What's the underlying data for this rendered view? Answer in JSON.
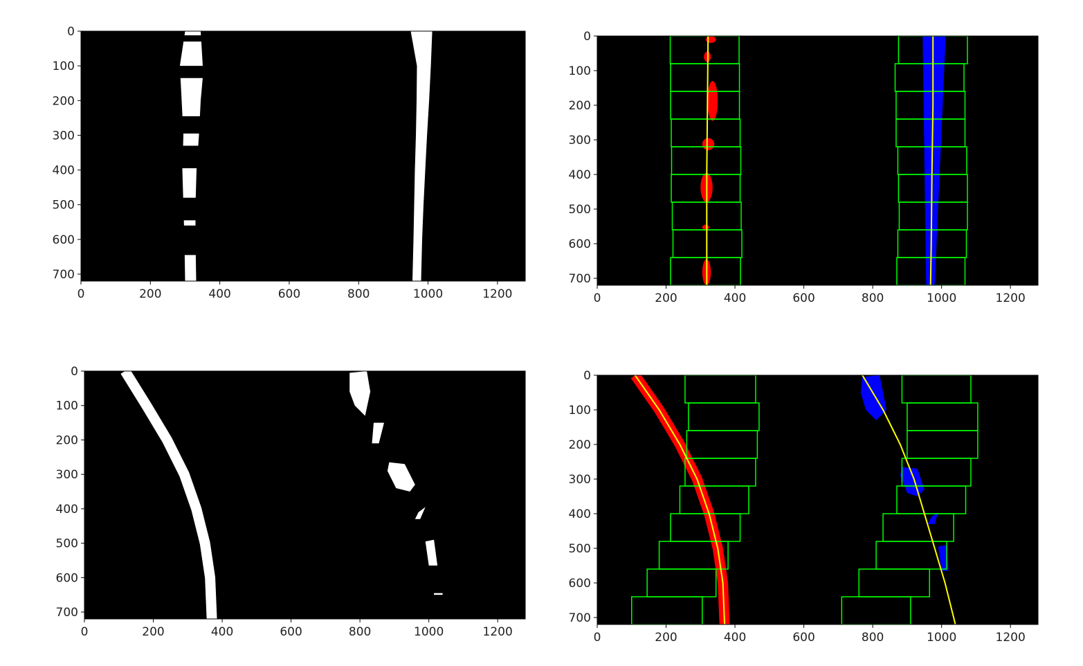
{
  "colors": {
    "background": "#000000",
    "lane_pixels_binary": "#ffffff",
    "left_lane_pixels": "#ff0000",
    "right_lane_pixels": "#0000ff",
    "search_windows": "#00ff00",
    "fit_curve": "#ffff00",
    "tick_text": "#222222",
    "frame": "#000000"
  },
  "chart_data": [
    {
      "type": "heatmap",
      "kind": "binary-lane-image",
      "xlim": [
        0,
        1280
      ],
      "ylim": [
        720,
        0
      ],
      "xticks": [
        "0",
        "200",
        "400",
        "600",
        "800",
        "1000",
        "1200"
      ],
      "yticks": [
        "0",
        "100",
        "200",
        "300",
        "400",
        "500",
        "600",
        "700"
      ],
      "lanes": [
        {
          "name": "",
          "polygon": [
            [
              305,
              0
            ],
            [
              345,
              0
            ],
            [
              352,
              120
            ],
            [
              345,
              200
            ],
            [
              340,
              300
            ],
            [
              333,
              400
            ],
            [
              330,
              500
            ],
            [
              330,
              600
            ],
            [
              332,
              720
            ],
            [
              300,
              720
            ],
            [
              298,
              600
            ],
            [
              295,
              500
            ],
            [
              292,
              400
            ],
            [
              295,
              300
            ],
            [
              290,
              200
            ],
            [
              285,
              100
            ],
            [
              300,
              0
            ]
          ],
          "segments": [
            [
              0,
              12
            ],
            [
              30,
              100
            ],
            [
              135,
              245
            ],
            [
              295,
              330
            ],
            [
              395,
              480
            ],
            [
              545,
              560
            ],
            [
              645,
              720
            ]
          ]
        },
        {
          "name": "",
          "polygon": [
            [
              945,
              0
            ],
            [
              1012,
              0
            ],
            [
              1008,
              100
            ],
            [
              1003,
              200
            ],
            [
              997,
              300
            ],
            [
              992,
              400
            ],
            [
              987,
              500
            ],
            [
              983,
              600
            ],
            [
              980,
              720
            ],
            [
              955,
              720
            ],
            [
              958,
              600
            ],
            [
              960,
              500
            ],
            [
              962,
              400
            ],
            [
              965,
              300
            ],
            [
              967,
              200
            ],
            [
              968,
              100
            ],
            [
              950,
              0
            ]
          ],
          "segments": [
            [
              0,
              720
            ]
          ]
        }
      ]
    },
    {
      "type": "heatmap",
      "kind": "sliding-window-fit",
      "xlim": [
        0,
        1280
      ],
      "ylim": [
        720,
        0
      ],
      "xticks": [
        "0",
        "200",
        "400",
        "600",
        "800",
        "1000",
        "1200"
      ],
      "yticks": [
        "0",
        "100",
        "200",
        "300",
        "400",
        "500",
        "600",
        "700"
      ],
      "window_height": 80,
      "left_windows": [
        [
          213,
          416
        ],
        [
          220,
          420
        ],
        [
          218,
          418
        ],
        [
          215,
          415
        ],
        [
          216,
          417
        ],
        [
          215,
          415
        ],
        [
          213,
          413
        ],
        [
          213,
          413
        ],
        [
          212,
          412
        ]
      ],
      "right_windows": [
        [
          870,
          1068
        ],
        [
          873,
          1072
        ],
        [
          877,
          1075
        ],
        [
          875,
          1075
        ],
        [
          873,
          1073
        ],
        [
          868,
          1068
        ],
        [
          868,
          1068
        ],
        [
          865,
          1065
        ],
        [
          875,
          1075
        ]
      ],
      "left_pixels": [
        {
          "xs": [
            315,
            345
          ],
          "ys": [
            0,
            20
          ]
        },
        {
          "xs": [
            310,
            330
          ],
          "ys": [
            45,
            75
          ]
        },
        {
          "xs": [
            320,
            350
          ],
          "ys": [
            130,
            245
          ]
        },
        {
          "xs": [
            305,
            340
          ],
          "ys": [
            295,
            330
          ]
        },
        {
          "xs": [
            300,
            335
          ],
          "ys": [
            395,
            480
          ]
        },
        {
          "xs": [
            305,
            325
          ],
          "ys": [
            545,
            560
          ]
        },
        {
          "xs": [
            305,
            330
          ],
          "ys": [
            645,
            720
          ]
        }
      ],
      "right_pixels": {
        "top": [
          945,
          1012
        ],
        "bottom": [
          955,
          980
        ]
      },
      "left_fit": [
        [
          322,
          0
        ],
        [
          320,
          200
        ],
        [
          318,
          400
        ],
        [
          318,
          600
        ],
        [
          318,
          720
        ]
      ],
      "right_fit": [
        [
          975,
          0
        ],
        [
          975,
          200
        ],
        [
          972,
          400
        ],
        [
          970,
          600
        ],
        [
          968,
          720
        ]
      ]
    },
    {
      "type": "heatmap",
      "kind": "binary-lane-image",
      "xlim": [
        0,
        1280
      ],
      "ylim": [
        720,
        0
      ],
      "xticks": [
        "0",
        "200",
        "400",
        "600",
        "800",
        "1000",
        "1200"
      ],
      "yticks": [
        "0",
        "100",
        "200",
        "300",
        "400",
        "500",
        "600",
        "700"
      ],
      "lanes": [
        {
          "name": "",
          "curve": [
            [
              118,
              0
            ],
            [
              180,
              100
            ],
            [
              240,
              200
            ],
            [
              290,
              300
            ],
            [
              325,
              400
            ],
            [
              350,
              500
            ],
            [
              365,
              600
            ],
            [
              370,
              720
            ]
          ],
          "width": 30
        }
      ],
      "blobs": [
        [
          [
            770,
            5
          ],
          [
            820,
            0
          ],
          [
            830,
            60
          ],
          [
            815,
            130
          ],
          [
            785,
            100
          ],
          [
            770,
            60
          ]
        ],
        [
          [
            840,
            150
          ],
          [
            870,
            150
          ],
          [
            855,
            210
          ],
          [
            835,
            210
          ]
        ],
        [
          [
            885,
            265
          ],
          [
            930,
            270
          ],
          [
            960,
            330
          ],
          [
            945,
            350
          ],
          [
            905,
            340
          ],
          [
            880,
            290
          ]
        ],
        [
          [
            970,
            410
          ],
          [
            990,
            395
          ],
          [
            975,
            430
          ],
          [
            960,
            430
          ]
        ],
        [
          [
            990,
            495
          ],
          [
            1015,
            490
          ],
          [
            1025,
            565
          ],
          [
            1000,
            565
          ]
        ],
        [
          [
            1015,
            645
          ],
          [
            1040,
            645
          ],
          [
            1040,
            650
          ],
          [
            1015,
            650
          ]
        ]
      ]
    },
    {
      "type": "heatmap",
      "kind": "sliding-window-fit",
      "xlim": [
        0,
        1280
      ],
      "ylim": [
        720,
        0
      ],
      "xticks": [
        "0",
        "200",
        "400",
        "600",
        "800",
        "1000",
        "1200"
      ],
      "yticks": [
        "0",
        "100",
        "200",
        "300",
        "400",
        "500",
        "600",
        "700"
      ],
      "window_height": 80,
      "left_windows": [
        [
          100,
          305
        ],
        [
          145,
          345
        ],
        [
          180,
          380
        ],
        [
          213,
          415
        ],
        [
          240,
          440
        ],
        [
          255,
          460
        ],
        [
          260,
          465
        ],
        [
          265,
          470
        ],
        [
          255,
          460
        ]
      ],
      "right_windows": [
        [
          710,
          910
        ],
        [
          760,
          965
        ],
        [
          810,
          1015
        ],
        [
          830,
          1035
        ],
        [
          870,
          1070
        ],
        [
          885,
          1085
        ],
        [
          900,
          1105
        ],
        [
          900,
          1105
        ],
        [
          885,
          1085
        ]
      ],
      "left_curve": {
        "points": [
          [
            110,
            0
          ],
          [
            180,
            100
          ],
          [
            240,
            200
          ],
          [
            290,
            300
          ],
          [
            325,
            400
          ],
          [
            350,
            500
          ],
          [
            365,
            600
          ],
          [
            370,
            720
          ]
        ],
        "width": 30
      },
      "right_blobs": [
        [
          [
            770,
            5
          ],
          [
            820,
            0
          ],
          [
            840,
            100
          ],
          [
            810,
            130
          ],
          [
            780,
            100
          ],
          [
            765,
            50
          ]
        ],
        [
          [
            885,
            265
          ],
          [
            930,
            270
          ],
          [
            950,
            330
          ],
          [
            930,
            350
          ],
          [
            900,
            340
          ],
          [
            880,
            290
          ]
        ],
        [
          [
            970,
            410
          ],
          [
            990,
            395
          ],
          [
            980,
            430
          ],
          [
            960,
            430
          ]
        ],
        [
          [
            990,
            495
          ],
          [
            1015,
            490
          ],
          [
            1020,
            565
          ],
          [
            1000,
            565
          ]
        ]
      ],
      "left_fit": [
        [
          110,
          0
        ],
        [
          180,
          100
        ],
        [
          240,
          200
        ],
        [
          290,
          300
        ],
        [
          325,
          400
        ],
        [
          350,
          500
        ],
        [
          365,
          600
        ],
        [
          370,
          720
        ]
      ],
      "right_fit": [
        [
          770,
          0
        ],
        [
          830,
          100
        ],
        [
          880,
          200
        ],
        [
          920,
          300
        ],
        [
          950,
          400
        ],
        [
          980,
          500
        ],
        [
          1010,
          600
        ],
        [
          1040,
          720
        ]
      ]
    }
  ]
}
